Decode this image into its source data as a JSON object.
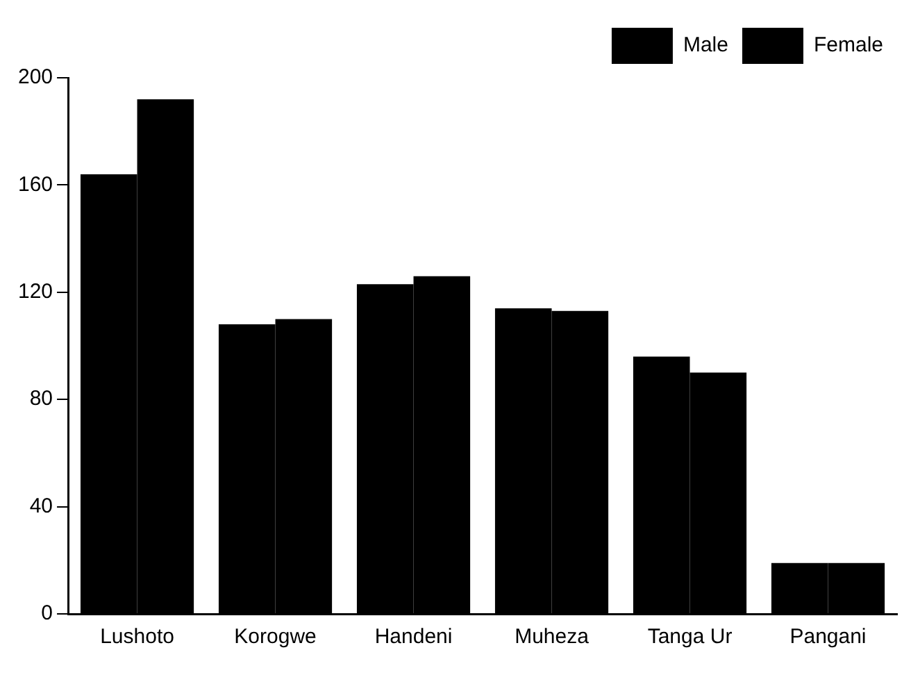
{
  "chart_data": {
    "type": "bar",
    "categories": [
      "Lushoto",
      "Korogwe",
      "Handeni",
      "Muheza",
      "Tanga Ur",
      "Pangani"
    ],
    "series": [
      {
        "name": "Male",
        "color": "#000000",
        "values": [
          164,
          108,
          123,
          114,
          96,
          19
        ]
      },
      {
        "name": "Female",
        "color": "#000000",
        "values": [
          192,
          110,
          126,
          113,
          90,
          19
        ]
      }
    ],
    "ylim": [
      0,
      200
    ],
    "yticks": [
      0,
      40,
      80,
      120,
      160,
      200
    ],
    "grid": false,
    "legend": "top right"
  }
}
